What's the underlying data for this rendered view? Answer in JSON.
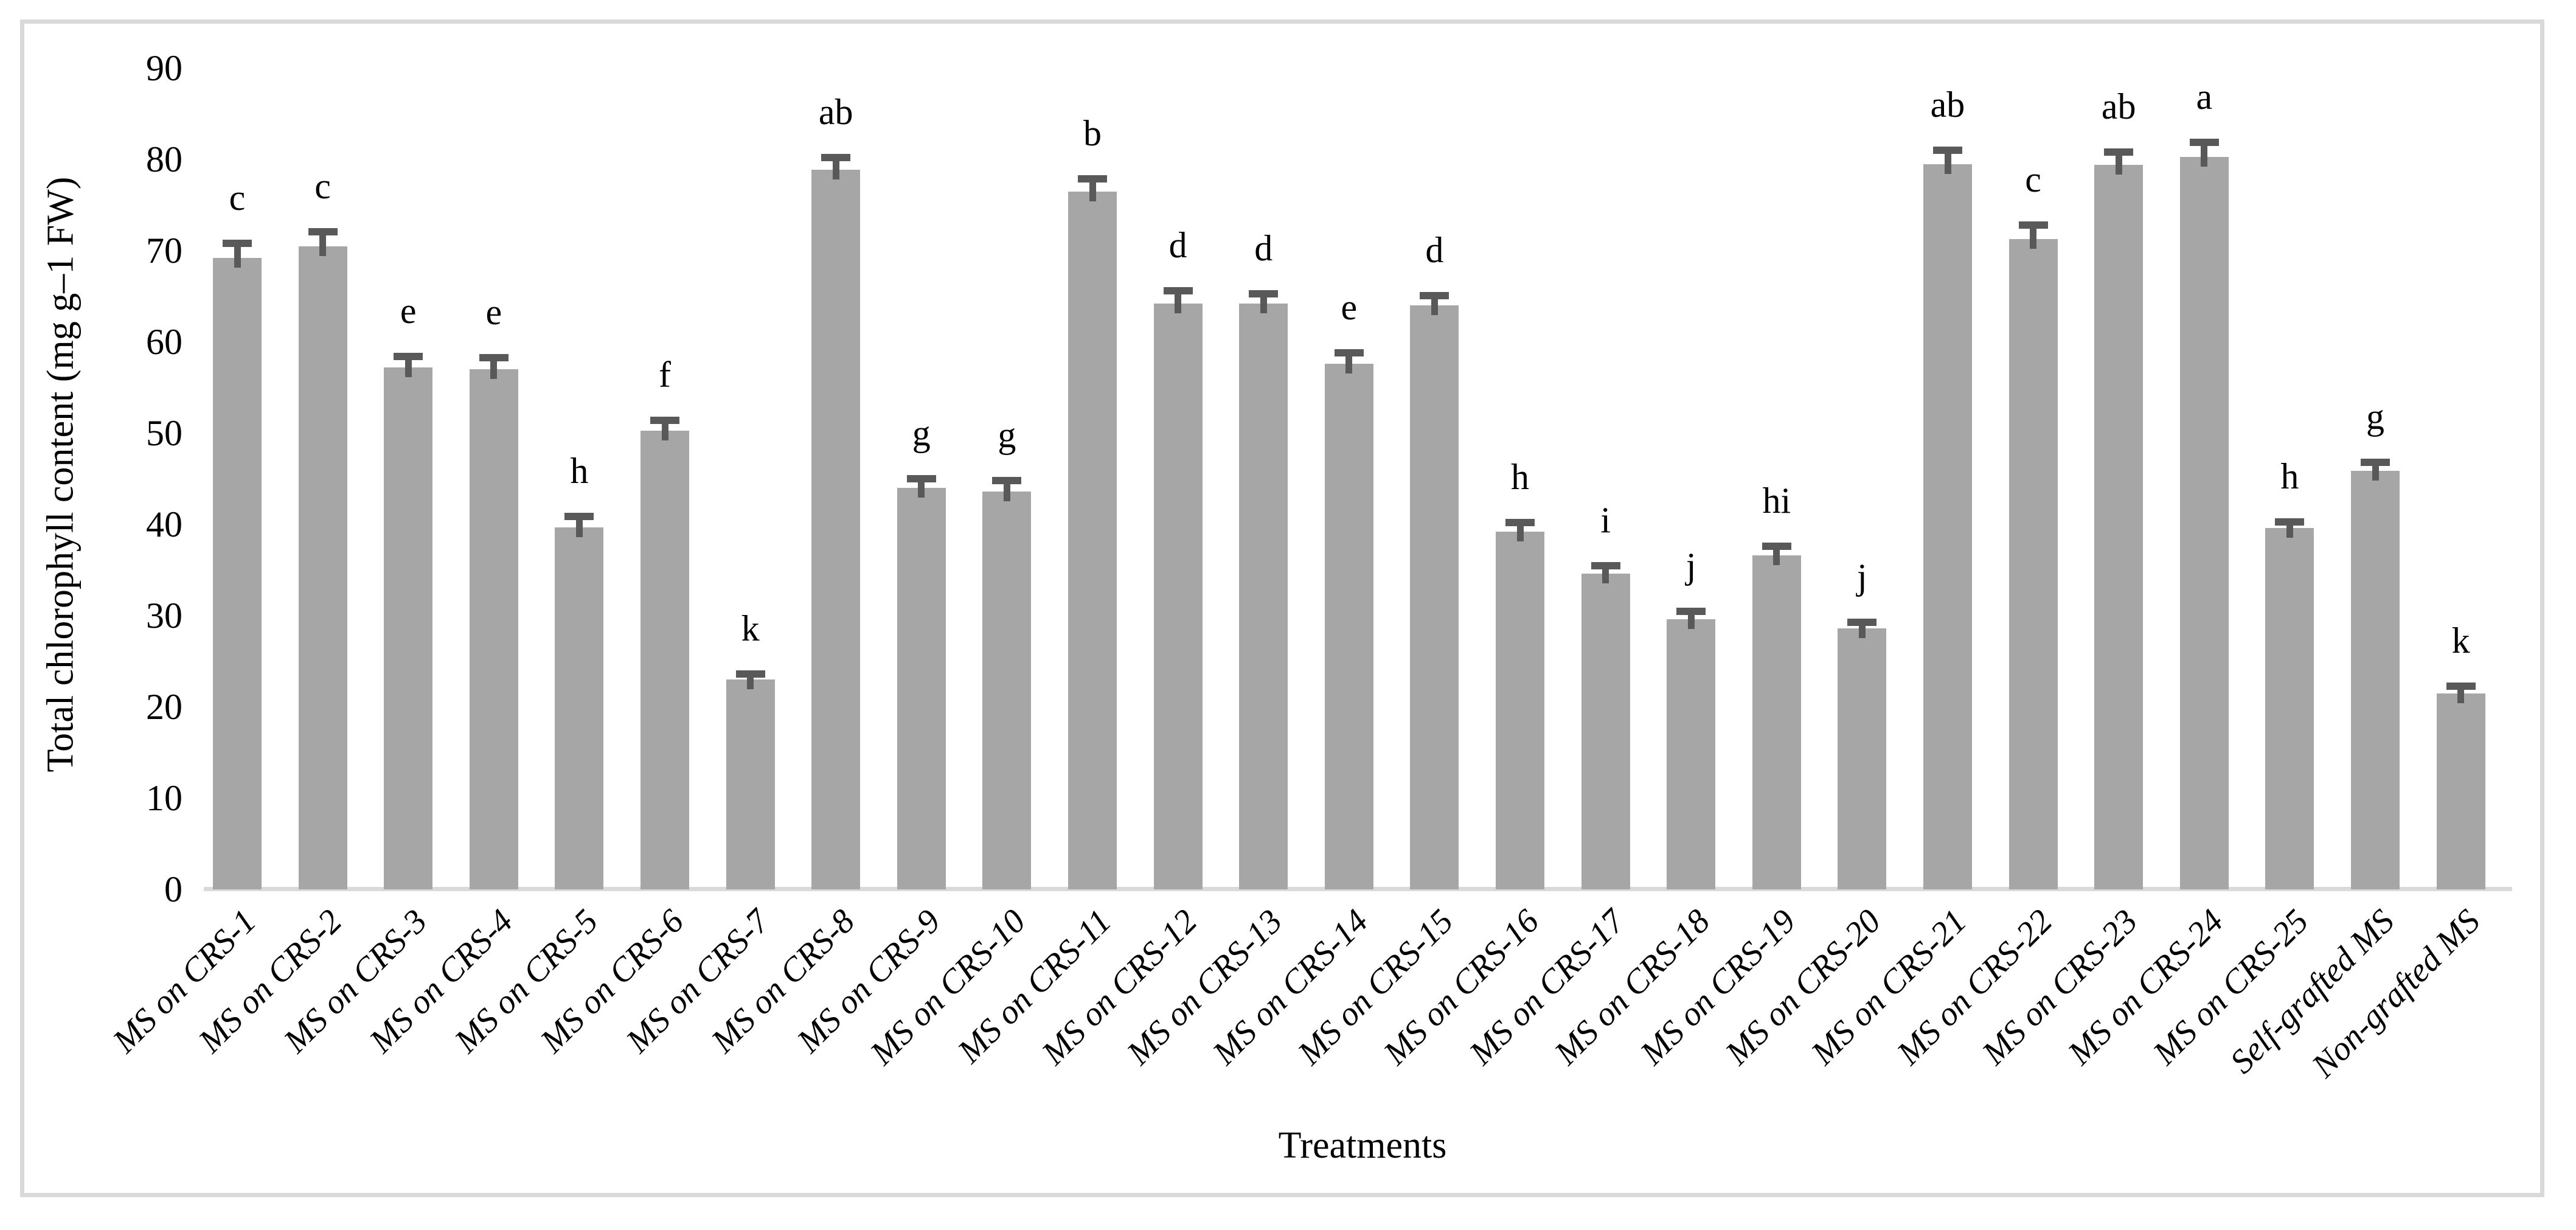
{
  "figure": {
    "border_color": "#d9d9d9",
    "background": "#ffffff"
  },
  "chart_data": {
    "type": "bar",
    "title": "",
    "xlabel": "Treatments",
    "ylabel": "Total chlorophyll content (mg g–1 FW)",
    "ylim": [
      0,
      90
    ],
    "ytick_step": 10,
    "yticks": [
      0,
      10,
      20,
      30,
      40,
      50,
      60,
      70,
      80,
      90
    ],
    "grid": false,
    "legend": "none",
    "bar_fill_color": "#a6a6a6",
    "error_bar_color": "#595959",
    "axis_line_color": "#d9d9d9",
    "categories": [
      "MS on CRS-1",
      "MS on CRS-2",
      "MS on CRS-3",
      "MS on CRS-4",
      "MS on CRS-5",
      "MS on CRS-6",
      "MS on CRS-7",
      "MS on CRS-8",
      "MS on CRS-9",
      "MS on CRS-10",
      "MS on CRS-11",
      "MS on CRS-12",
      "MS on CRS-13",
      "MS on CRS-14",
      "MS on CRS-15",
      "MS on CRS-16",
      "MS on CRS-17",
      "MS on CRS-18",
      "MS on CRS-19",
      "MS on CRS-20",
      "MS on CRS-21",
      "MS on CRS-22",
      "MS on CRS-23",
      "MS on CRS-24",
      "MS on CRS-25",
      "Self-grafted MS",
      "Non-grafted MS"
    ],
    "values": [
      69.2,
      70.5,
      57.2,
      57.0,
      39.7,
      50.3,
      23.0,
      78.9,
      44.0,
      43.6,
      76.5,
      64.2,
      64.2,
      57.6,
      64.0,
      39.2,
      34.6,
      29.6,
      36.6,
      28.6,
      79.5,
      71.3,
      79.4,
      80.3,
      39.6,
      45.9,
      21.5
    ],
    "errors": [
      1.6,
      1.6,
      1.2,
      1.3,
      1.2,
      1.1,
      0.6,
      1.3,
      1.0,
      1.2,
      1.4,
      1.4,
      1.1,
      1.2,
      1.1,
      1.0,
      0.9,
      0.9,
      1.0,
      0.7,
      1.5,
      1.5,
      1.4,
      1.6,
      0.7,
      0.9,
      0.8
    ],
    "significance_letters": [
      "c",
      "c",
      "e",
      "e",
      "h",
      "f",
      "k",
      "ab",
      "g",
      "g",
      "b",
      "d",
      "d",
      "e",
      "d",
      "h",
      "i",
      "j",
      "hi",
      "j",
      "ab",
      "c",
      "ab",
      "a",
      "h",
      "g",
      "k"
    ]
  }
}
